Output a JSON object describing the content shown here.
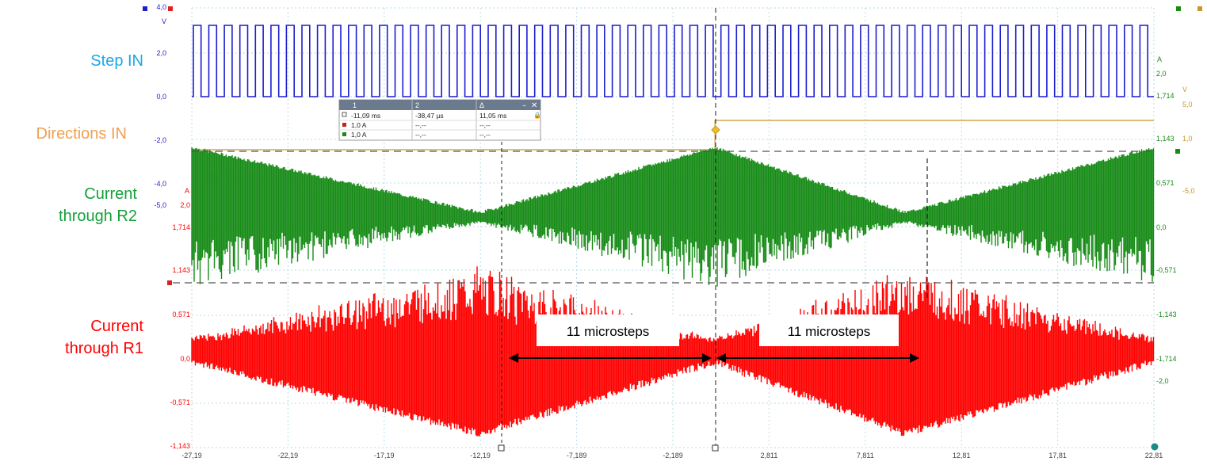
{
  "chart_data": {
    "type": "line",
    "x_axis": {
      "ticks": [
        "-27,19",
        "-22,19",
        "-17,19",
        "-12,19",
        "-7,189",
        "-2,189",
        "2,811",
        "7,811",
        "12,81",
        "17,81",
        "22,81"
      ],
      "range": [
        -27.19,
        22.81
      ]
    },
    "left_axis_blue": {
      "ticks": [
        "4,0",
        "2,0",
        "0,0",
        "-2,0",
        "-4,0",
        "-5,0"
      ],
      "unit": "V"
    },
    "left_axis_red": {
      "ticks": [
        "2,0",
        "1,714",
        "1,143",
        "0,571",
        "0,0",
        "-0,571",
        "-1,143"
      ],
      "unit": "A"
    },
    "right_axis_green": {
      "ticks": [
        "2,0",
        "1,714",
        "1,143",
        "0,571",
        "0,0",
        "-0,571",
        "-1,143",
        "-1,714",
        "-2,0"
      ],
      "unit": "A"
    },
    "right_axis_orange": {
      "ticks": [
        "5,0",
        "1,0",
        "-5,0"
      ],
      "unit": "V"
    },
    "series": [
      {
        "name": "Step IN",
        "color": "#1d1dd0",
        "kind": "square",
        "high": 3.4,
        "low": 0.0,
        "periods": 62
      },
      {
        "name": "Directions IN",
        "color": "#c8962a",
        "kind": "step",
        "step_at": 0.0
      },
      {
        "name": "Current through R2",
        "color": "#168b16",
        "kind": "envelope",
        "envelope": [
          [
            -27.19,
            1.0
          ],
          [
            -12.19,
            0.02
          ],
          [
            0.0,
            1.0
          ],
          [
            9.9,
            0.02
          ],
          [
            22.81,
            1.0
          ]
        ]
      },
      {
        "name": "Current through R1",
        "color": "#ff0000",
        "kind": "envelope",
        "envelope": [
          [
            -27.19,
            0.02
          ],
          [
            -12.19,
            1.0
          ],
          [
            0.0,
            0.02
          ],
          [
            9.9,
            1.0
          ],
          [
            22.81,
            0.02
          ]
        ]
      }
    ],
    "annotations": [
      {
        "text": "11 microsteps",
        "from": -12.19,
        "to": 0.0
      },
      {
        "text": "11 microsteps",
        "from": 0.0,
        "to": 9.9
      }
    ],
    "cursor_table": {
      "headers": [
        "1",
        "2",
        "Δ"
      ],
      "rows": [
        [
          "-11,09 ms",
          "-38,47 µs",
          "11,05 ms"
        ],
        [
          "1,0 A",
          "--,--",
          "--,--"
        ],
        [
          "1,0 A",
          "--,--",
          "--,--"
        ]
      ]
    },
    "grid": true
  },
  "labels": {
    "step": "Step IN",
    "dir": "Directions IN",
    "r2_line1": "Current",
    "r2_line2": "through R2",
    "r1_line1": "Current",
    "r1_line2": "through R1",
    "blue_unit": "V",
    "red_unit": "A",
    "green_unit": "A",
    "orange_unit": "V"
  },
  "colors": {
    "step": "#1aa7e8",
    "dir": "#f0a050",
    "r2": "#14a03a",
    "r1": "#ff0000",
    "blue": "#1d1dd0",
    "green": "#168b16",
    "red": "#ff0000",
    "orange": "#c8962a"
  }
}
